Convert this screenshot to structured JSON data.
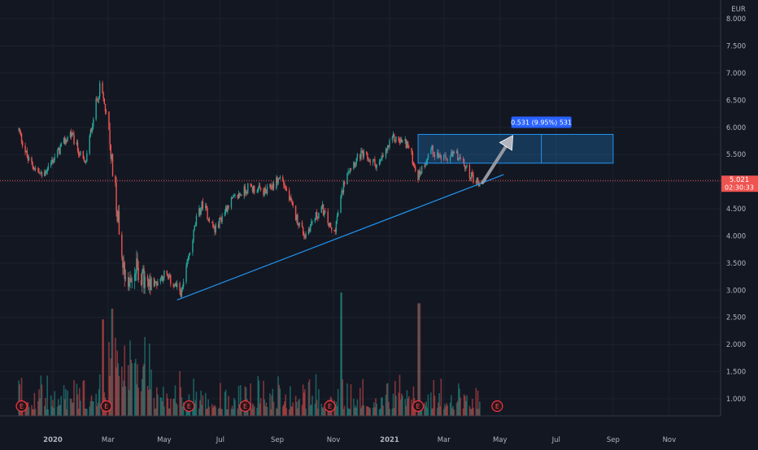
{
  "chart_data": {
    "type": "candlestick",
    "currency": "EUR",
    "y_axis": {
      "ticks": [
        "8.000",
        "7.500",
        "7.000",
        "6.500",
        "6.000",
        "5.500",
        "5.000",
        "4.500",
        "4.000",
        "3.500",
        "3.000",
        "2.500",
        "2.000",
        "1.500",
        "1.000"
      ],
      "tick_values": [
        8.0,
        7.5,
        7.0,
        6.5,
        6.0,
        5.5,
        5.0,
        4.5,
        4.0,
        3.5,
        3.0,
        2.5,
        2.0,
        1.5,
        1.0
      ],
      "range": [
        0.62,
        8.2
      ]
    },
    "x_axis": {
      "labels": [
        {
          "text": "2020",
          "date": "2020-01",
          "bold": true
        },
        {
          "text": "Mar",
          "date": "2020-03"
        },
        {
          "text": "May",
          "date": "2020-05"
        },
        {
          "text": "Jul",
          "date": "2020-07"
        },
        {
          "text": "Sep",
          "date": "2020-09"
        },
        {
          "text": "Nov",
          "date": "2020-11"
        },
        {
          "text": "2021",
          "date": "2021-01",
          "bold": true
        },
        {
          "text": "Mar",
          "date": "2021-03"
        },
        {
          "text": "May",
          "date": "2021-05"
        },
        {
          "text": "Jul",
          "date": "2021-07"
        },
        {
          "text": "Sep",
          "date": "2021-09"
        },
        {
          "text": "Nov",
          "date": "2021-11"
        }
      ]
    },
    "price_anchors": [
      [
        "2019-11-25",
        5.95
      ],
      [
        "2019-12-05",
        5.4
      ],
      [
        "2019-12-20",
        5.1
      ],
      [
        "2020-01-05",
        5.5
      ],
      [
        "2020-01-20",
        5.9
      ],
      [
        "2020-02-05",
        5.3
      ],
      [
        "2020-02-15",
        6.3
      ],
      [
        "2020-02-22",
        6.8
      ],
      [
        "2020-03-01",
        6.0
      ],
      [
        "2020-03-08",
        5.0
      ],
      [
        "2020-03-15",
        3.8
      ],
      [
        "2020-03-22",
        3.1
      ],
      [
        "2020-04-01",
        3.4
      ],
      [
        "2020-04-15",
        3.0
      ],
      [
        "2020-05-01",
        3.3
      ],
      [
        "2020-05-20",
        2.95
      ],
      [
        "2020-06-05",
        4.3
      ],
      [
        "2020-06-12",
        4.6
      ],
      [
        "2020-06-25",
        4.1
      ],
      [
        "2020-07-10",
        4.6
      ],
      [
        "2020-08-01",
        4.9
      ],
      [
        "2020-08-20",
        4.8
      ],
      [
        "2020-09-05",
        5.1
      ],
      [
        "2020-09-20",
        4.4
      ],
      [
        "2020-10-01",
        4.0
      ],
      [
        "2020-10-10",
        4.3
      ],
      [
        "2020-10-20",
        4.5
      ],
      [
        "2020-11-01",
        4.0
      ],
      [
        "2020-11-15",
        5.2
      ],
      [
        "2020-12-01",
        5.5
      ],
      [
        "2020-12-20",
        5.3
      ],
      [
        "2021-01-05",
        5.8
      ],
      [
        "2021-01-20",
        5.7
      ],
      [
        "2021-02-01",
        5.1
      ],
      [
        "2021-02-15",
        5.6
      ],
      [
        "2021-03-01",
        5.4
      ],
      [
        "2021-03-15",
        5.5
      ],
      [
        "2021-03-31",
        5.1
      ],
      [
        "2021-04-10",
        4.95
      ]
    ],
    "volume_spikes": [
      [
        "2020-02-24",
        1.8
      ],
      [
        "2020-03-06",
        2.0
      ],
      [
        "2020-11-09",
        2.3
      ],
      [
        "2021-02-02",
        2.1
      ]
    ],
    "last_price": "5.021",
    "last_price_value": 5.021,
    "countdown": "02:30:33",
    "earnings_markers": [
      {
        "label": "E",
        "date": "2019-11-28"
      },
      {
        "label": "E",
        "date": "2020-02-28"
      },
      {
        "label": "E",
        "date": "2020-05-28"
      },
      {
        "label": "E",
        "date": "2020-07-28"
      },
      {
        "label": "E",
        "date": "2020-10-28"
      },
      {
        "label": "E",
        "date": "2021-02-01"
      },
      {
        "label": "E",
        "date": "2021-04-28"
      }
    ],
    "trendline": {
      "start": [
        "2020-05-15",
        2.82
      ],
      "end": [
        "2021-05-05",
        5.13
      ]
    },
    "range_box": {
      "start_date": "2021-02-01",
      "end_date": "2021-09-01",
      "top": 5.87,
      "bottom": 5.34,
      "mid_date": "2021-06-15"
    },
    "projection_arrow": {
      "from": [
        "2021-04-12",
        4.98
      ],
      "to": [
        "2021-05-15",
        5.85
      ]
    },
    "measure_label": "0.531 (9.95%) 531"
  }
}
